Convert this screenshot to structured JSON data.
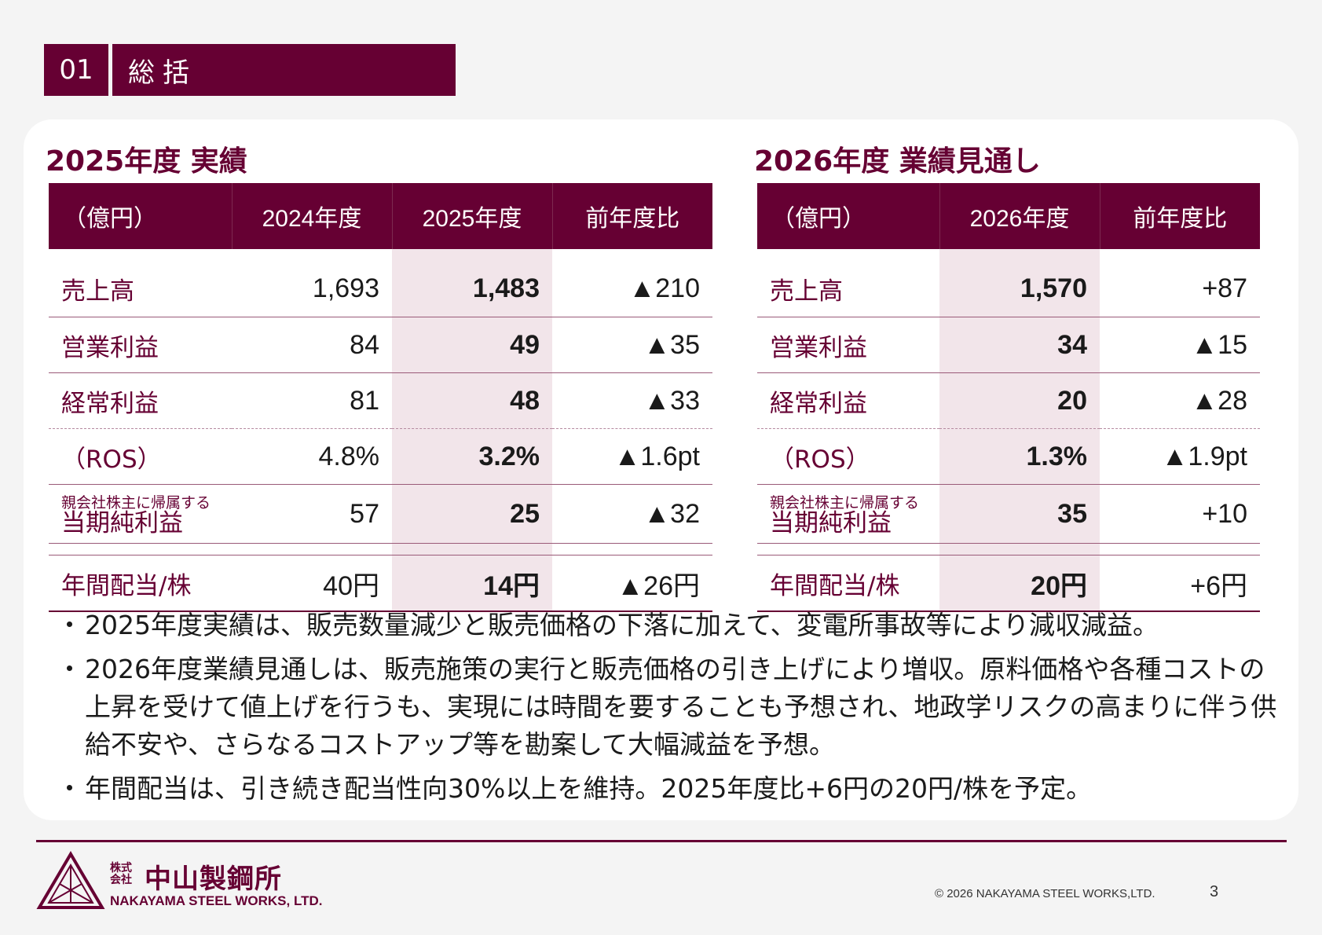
{
  "section": {
    "number": "01",
    "title": "総括"
  },
  "left": {
    "title": "2025年度  実績",
    "headers": [
      "（億円）",
      "2024年度",
      "2025年度",
      "前年度比"
    ],
    "rows": [
      {
        "label": "売上高",
        "c1": "1,693",
        "c2": "1,483",
        "c3": "▲210"
      },
      {
        "label": "営業利益",
        "c1": "84",
        "c2": "49",
        "c3": "▲35"
      },
      {
        "label": "経常利益",
        "c1": "81",
        "c2": "48",
        "c3": "▲33"
      },
      {
        "label": "（ROS）",
        "c1": "4.8%",
        "c2": "3.2%",
        "c3": "▲1.6pt"
      },
      {
        "label_small": "親会社株主に帰属する",
        "label": "当期純利益",
        "c1": "57",
        "c2": "25",
        "c3": "▲32"
      },
      {
        "label": "年間配当/株",
        "c1": "40円",
        "c2": "14円",
        "c3": "▲26円"
      }
    ]
  },
  "right": {
    "title": "2026年度  業績見通し",
    "headers": [
      "（億円）",
      "2026年度",
      "前年度比"
    ],
    "rows": [
      {
        "label": "売上高",
        "c1": "1,570",
        "c2": "+87"
      },
      {
        "label": "営業利益",
        "c1": "34",
        "c2": "▲15"
      },
      {
        "label": "経常利益",
        "c1": "20",
        "c2": "▲28"
      },
      {
        "label": "（ROS）",
        "c1": "1.3%",
        "c2": "▲1.9pt"
      },
      {
        "label_small": "親会社株主に帰属する",
        "label": "当期純利益",
        "c1": "35",
        "c2": "+10"
      },
      {
        "label": "年間配当/株",
        "c1": "20円",
        "c2": "+6円"
      }
    ]
  },
  "bullets": [
    "2025年度実績は、販売数量減少と販売価格の下落に加えて、変電所事故等により減収減益。",
    "2026年度業績見通しは、販売施策の実行と販売価格の引き上げにより増収。原料価格や各種コストの上昇を受けて値上げを行うも、実現には時間を要することも予想され、地政学リスクの高まりに伴う供給不安や、さらなるコストアップ等を勘案して大幅減益を予想。",
    "年間配当は、引き続き配当性向30%以上を維持。2025年度比+6円の20円/株を予定。"
  ],
  "footer": {
    "logo_small": "株式会社",
    "logo_name": "中山製鋼所",
    "logo_en": "NAKAYAMA STEEL WORKS, LTD.",
    "copyright": "© 2026 NAKAYAMA STEEL WORKS,LTD.",
    "page": "3"
  },
  "colors": {
    "brand": "#660033",
    "highlight": "#f2e5ea"
  }
}
